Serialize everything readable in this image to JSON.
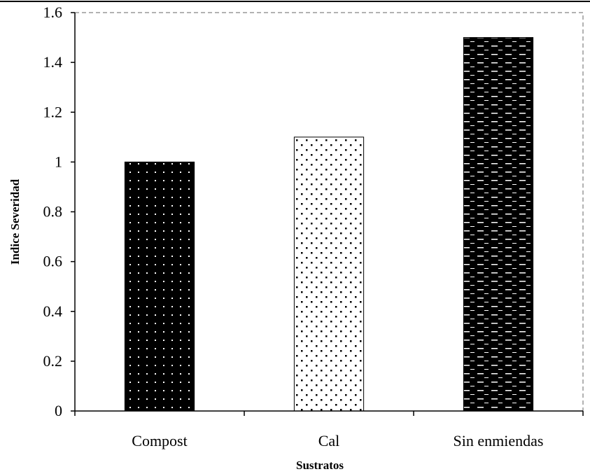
{
  "chart_data": {
    "type": "bar",
    "categories": [
      "Compost",
      "Cal",
      "Sin enmiendas"
    ],
    "values": [
      1.0,
      1.1,
      1.5
    ],
    "title": "",
    "xlabel": "Sustratos",
    "ylabel": "Indice Severidad",
    "ylim": [
      0,
      1.6
    ],
    "yticks": [
      "0",
      "0.2",
      "0.4",
      "0.6",
      "0.8",
      "1",
      "1.2",
      "1.4",
      "1.6"
    ],
    "grid": false,
    "legend": "none",
    "bar_styles": [
      "dark-dotted",
      "light-dotted",
      "dark-dashed"
    ],
    "colors": {
      "dark": "#000000",
      "light": "#ffffff",
      "axis": "#000000"
    }
  }
}
